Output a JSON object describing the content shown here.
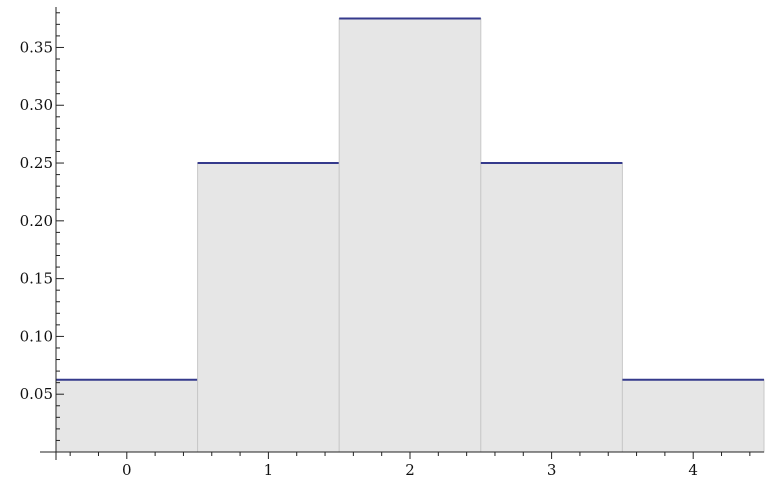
{
  "chart_data": {
    "type": "bar",
    "categories": [
      "0",
      "1",
      "2",
      "3",
      "4"
    ],
    "values": [
      0.0625,
      0.25,
      0.375,
      0.25,
      0.0625
    ],
    "title": "",
    "xlabel": "",
    "ylabel": "",
    "xlim": [
      -0.5,
      4.5
    ],
    "ylim": [
      0,
      0.385
    ],
    "y_ticks": [
      "0.05",
      "0.10",
      "0.15",
      "0.20",
      "0.25",
      "0.30",
      "0.35"
    ],
    "grid": false,
    "legend": "none",
    "colors": {
      "bar_fill": "#e6e6e6",
      "bar_edge": "#c8c8c8",
      "top_line": "#353a8c",
      "axis": "#222222"
    }
  }
}
